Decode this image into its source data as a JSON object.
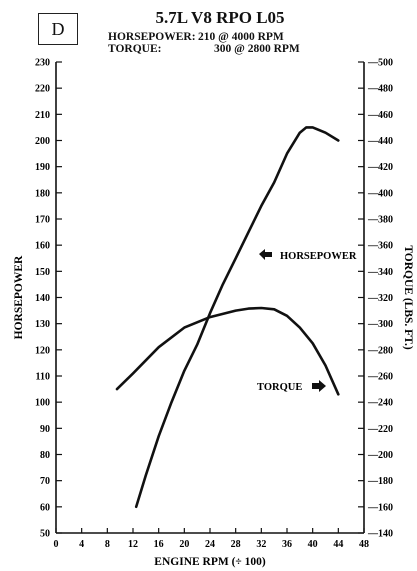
{
  "panel_label": "D",
  "title": "5.7L V8 RPO L05",
  "specs": {
    "hp_label": "HORSEPOWER:",
    "hp_value": "210 @ 4000 RPM",
    "tq_label": "TORQUE:",
    "tq_value": "300 @ 2800 RPM"
  },
  "chart_data": {
    "type": "line",
    "title": "5.7L V8 RPO L05",
    "xlabel": "ENGINE RPM (÷ 100)",
    "ylabel_left": "HORSEPOWER",
    "ylabel_right": "TORQUE (LBS. FT.)",
    "xlim": [
      0,
      48
    ],
    "ylim_left": [
      50,
      230
    ],
    "ylim_right": [
      140,
      500
    ],
    "x_ticks": [
      0,
      4,
      8,
      12,
      16,
      20,
      24,
      28,
      32,
      36,
      40,
      44,
      48
    ],
    "y_left_ticks": [
      50,
      60,
      70,
      80,
      90,
      100,
      110,
      120,
      130,
      140,
      150,
      160,
      170,
      180,
      190,
      200,
      210,
      220,
      230
    ],
    "y_right_ticks": [
      140,
      160,
      180,
      200,
      220,
      240,
      260,
      280,
      300,
      320,
      340,
      360,
      380,
      400,
      420,
      440,
      460,
      480,
      500
    ],
    "grid": false,
    "series": [
      {
        "name": "HORSEPOWER",
        "axis": "left",
        "x": [
          12.5,
          14,
          16,
          18,
          20,
          22,
          24,
          26,
          28,
          30,
          32,
          34,
          36,
          38,
          39,
          40,
          42,
          44
        ],
        "values": [
          60,
          72,
          87,
          100,
          112,
          122,
          134,
          145,
          155,
          165,
          175,
          184,
          195,
          203,
          205,
          205,
          203,
          200
        ]
      },
      {
        "name": "TORQUE",
        "axis": "right",
        "x": [
          9.5,
          12,
          16,
          20,
          24,
          28,
          30,
          32,
          34,
          36,
          38,
          40,
          42,
          44
        ],
        "values": [
          250,
          262,
          282,
          297,
          305,
          310,
          311.5,
          312,
          311,
          306,
          297,
          285,
          268,
          246
        ]
      }
    ],
    "annotations": [
      {
        "text": "HORSEPOWER",
        "series": "HORSEPOWER"
      },
      {
        "text": "TORQUE",
        "series": "TORQUE"
      }
    ]
  }
}
